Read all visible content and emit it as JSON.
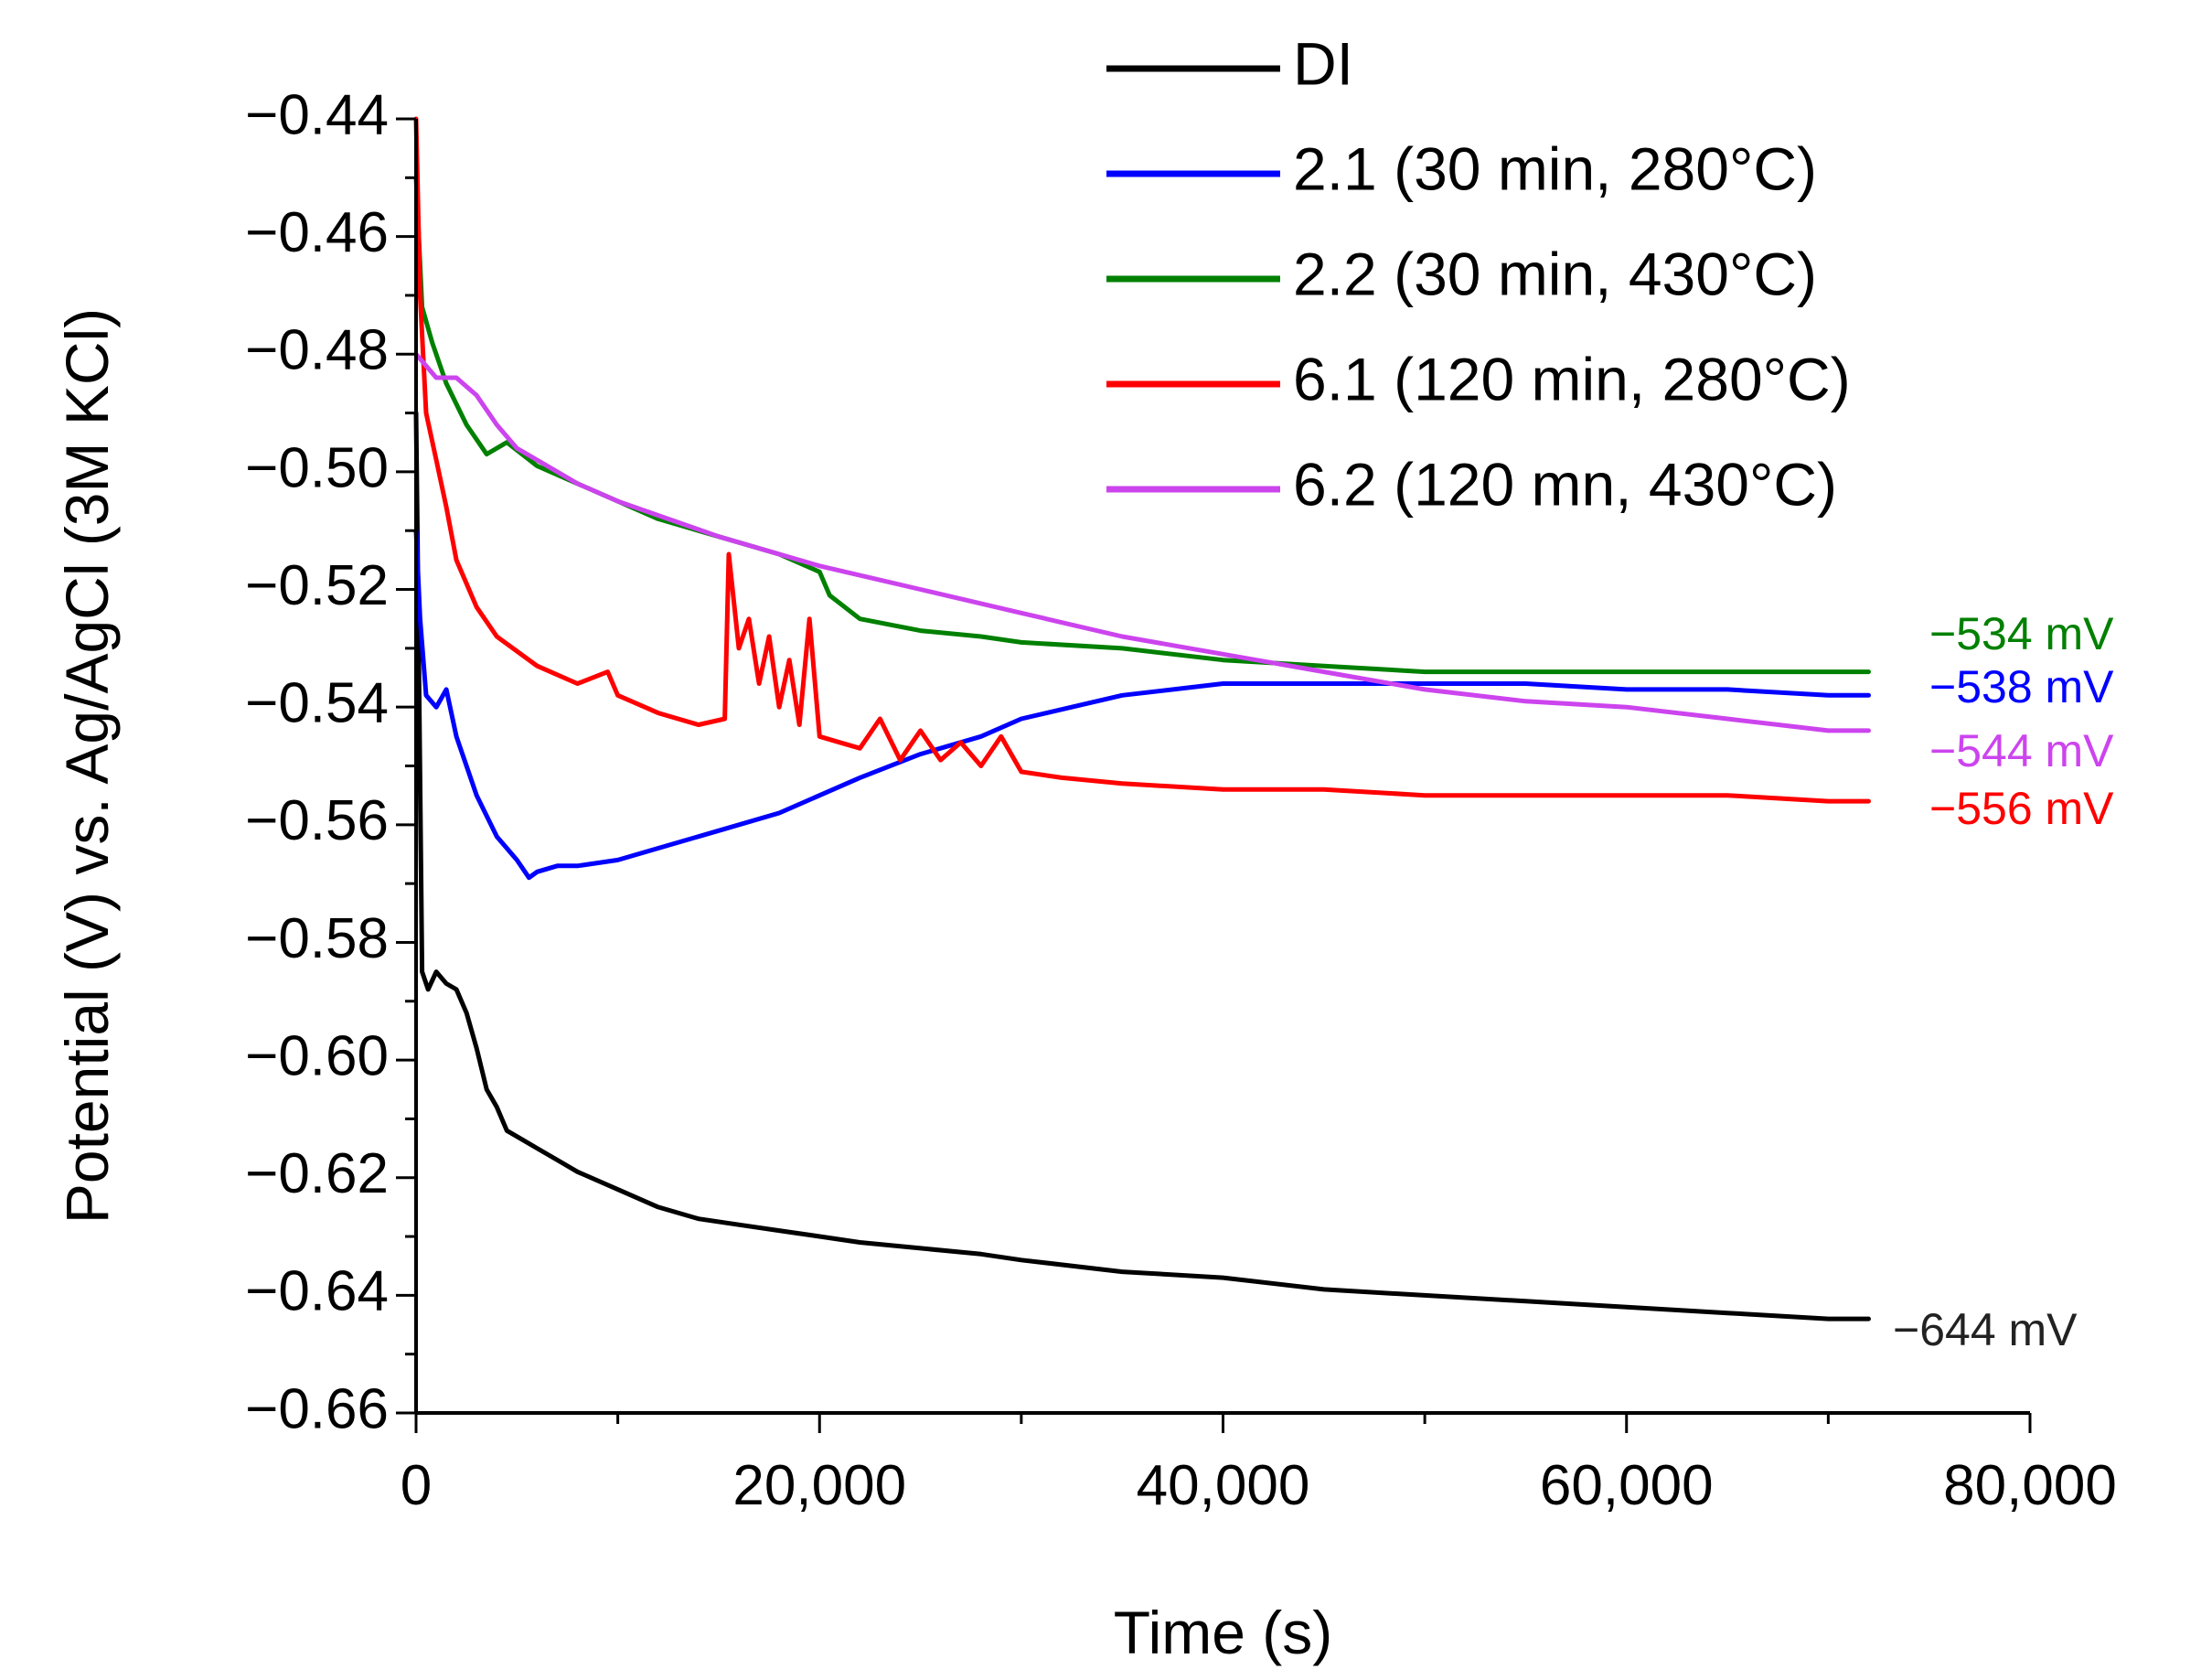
{
  "chart_data": {
    "type": "line",
    "title": "",
    "xlabel": "Time (s)",
    "ylabel": "Potential (V) vs. Ag/AgCl (3M KCl)",
    "xlim": [
      0,
      80000
    ],
    "ylim": [
      -0.66,
      -0.44
    ],
    "x_ticks": [
      0,
      20000,
      40000,
      60000,
      80000
    ],
    "x_tick_labels": [
      "0",
      "20,000",
      "40,000",
      "60,000",
      "80,000"
    ],
    "y_ticks": [
      -0.44,
      -0.46,
      -0.48,
      -0.5,
      -0.52,
      -0.54,
      -0.56,
      -0.58,
      -0.6,
      -0.62,
      -0.64,
      -0.66
    ],
    "y_tick_labels": [
      "−0.44",
      "−0.46",
      "−0.48",
      "−0.50",
      "−0.52",
      "−0.54",
      "−0.56",
      "−0.58",
      "−0.60",
      "−0.62",
      "−0.64",
      "−0.66"
    ],
    "legend_position": "top-right",
    "series": [
      {
        "name": "DI",
        "color": "#000000",
        "end_label": "−644 mV",
        "x": [
          0,
          100,
          300,
          600,
          1000,
          1500,
          2000,
          2500,
          3000,
          3500,
          4000,
          4500,
          5000,
          6000,
          7000,
          8000,
          10000,
          12000,
          14000,
          16000,
          18000,
          20000,
          22000,
          25000,
          28000,
          30000,
          35000,
          40000,
          45000,
          50000,
          55000,
          60000,
          65000,
          70000,
          72000
        ],
        "y": [
          -0.49,
          -0.52,
          -0.585,
          -0.588,
          -0.585,
          -0.587,
          -0.588,
          -0.592,
          -0.598,
          -0.605,
          -0.608,
          -0.612,
          -0.613,
          -0.615,
          -0.617,
          -0.619,
          -0.622,
          -0.625,
          -0.627,
          -0.628,
          -0.629,
          -0.63,
          -0.631,
          -0.632,
          -0.633,
          -0.634,
          -0.636,
          -0.637,
          -0.639,
          -0.64,
          -0.641,
          -0.642,
          -0.643,
          -0.644,
          -0.644
        ]
      },
      {
        "name": "2.1 (30 min, 280°C)",
        "color": "#0000ff",
        "end_label": "−538 mV",
        "x": [
          0,
          200,
          500,
          1000,
          1500,
          2000,
          3000,
          4000,
          5000,
          5600,
          6000,
          7000,
          8000,
          10000,
          12000,
          15000,
          18000,
          20000,
          22000,
          25000,
          28000,
          30000,
          35000,
          40000,
          45000,
          50000,
          55000,
          60000,
          65000,
          70000,
          72000
        ],
        "y": [
          -0.51,
          -0.525,
          -0.538,
          -0.54,
          -0.537,
          -0.545,
          -0.555,
          -0.562,
          -0.566,
          -0.569,
          -0.568,
          -0.567,
          -0.567,
          -0.566,
          -0.564,
          -0.561,
          -0.558,
          -0.555,
          -0.552,
          -0.548,
          -0.545,
          -0.542,
          -0.538,
          -0.536,
          -0.536,
          -0.536,
          -0.536,
          -0.537,
          -0.537,
          -0.538,
          -0.538
        ]
      },
      {
        "name": "2.2 (30 min, 430°C)",
        "color": "#008000",
        "end_label": "−534 mV",
        "x": [
          0,
          300,
          800,
          1500,
          2500,
          3500,
          4500,
          6000,
          8000,
          10000,
          12000,
          15000,
          18000,
          20000,
          20500,
          22000,
          25000,
          28000,
          30000,
          35000,
          40000,
          45000,
          50000,
          55000,
          60000,
          65000,
          70000,
          72000
        ],
        "y": [
          -0.45,
          -0.472,
          -0.478,
          -0.485,
          -0.492,
          -0.497,
          -0.495,
          -0.499,
          -0.502,
          -0.505,
          -0.508,
          -0.511,
          -0.514,
          -0.517,
          -0.521,
          -0.525,
          -0.527,
          -0.528,
          -0.529,
          -0.53,
          -0.532,
          -0.533,
          -0.534,
          -0.534,
          -0.534,
          -0.534,
          -0.534,
          -0.534
        ]
      },
      {
        "name": "6.1 (120 min, 280°C)",
        "color": "#ff0000",
        "end_label": "−556 mV",
        "x": [
          0,
          200,
          500,
          1000,
          1500,
          2000,
          3000,
          4000,
          6000,
          8000,
          9500,
          10000,
          12000,
          14000,
          15300,
          15500,
          16000,
          16500,
          17000,
          17500,
          18000,
          18500,
          19000,
          19500,
          20000,
          21000,
          22000,
          23000,
          24000,
          25000,
          26000,
          27000,
          28000,
          29000,
          30000,
          32000,
          35000,
          40000,
          45000,
          50000,
          55000,
          60000,
          65000,
          70000,
          72000
        ],
        "y": [
          -0.44,
          -0.47,
          -0.49,
          -0.498,
          -0.506,
          -0.515,
          -0.523,
          -0.528,
          -0.533,
          -0.536,
          -0.534,
          -0.538,
          -0.541,
          -0.543,
          -0.542,
          -0.514,
          -0.53,
          -0.525,
          -0.536,
          -0.528,
          -0.54,
          -0.532,
          -0.543,
          -0.525,
          -0.545,
          -0.546,
          -0.547,
          -0.542,
          -0.549,
          -0.544,
          -0.549,
          -0.546,
          -0.55,
          -0.545,
          -0.551,
          -0.552,
          -0.553,
          -0.554,
          -0.554,
          -0.555,
          -0.555,
          -0.555,
          -0.555,
          -0.556,
          -0.556
        ]
      },
      {
        "name": "6.2 (120 mn, 430°C)",
        "color": "#cc44ee",
        "end_label": "−544 mV",
        "x": [
          0,
          1000,
          2000,
          3000,
          4000,
          5000,
          6000,
          8000,
          10000,
          15000,
          20000,
          25000,
          30000,
          35000,
          40000,
          45000,
          50000,
          55000,
          60000,
          65000,
          70000,
          72000
        ],
        "y": [
          -0.48,
          -0.484,
          -0.484,
          -0.487,
          -0.492,
          -0.496,
          -0.498,
          -0.502,
          -0.505,
          -0.511,
          -0.516,
          -0.52,
          -0.524,
          -0.528,
          -0.531,
          -0.534,
          -0.537,
          -0.539,
          -0.54,
          -0.542,
          -0.544,
          -0.544
        ]
      }
    ]
  }
}
